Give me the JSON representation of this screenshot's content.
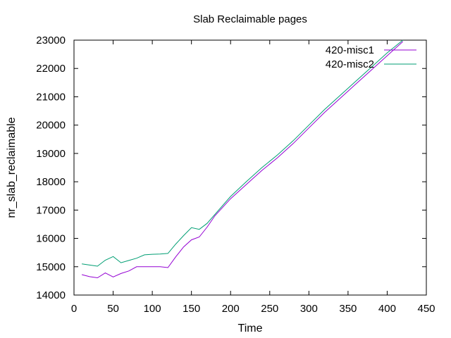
{
  "chart_data": {
    "type": "line",
    "title": "Slab Reclaimable pages",
    "xlabel": "Time",
    "ylabel": "nr_slab_reclaimable",
    "xlim": [
      0,
      450
    ],
    "ylim": [
      14000,
      23000
    ],
    "xticks": [
      0,
      50,
      100,
      150,
      200,
      250,
      300,
      350,
      400,
      450
    ],
    "yticks": [
      14000,
      15000,
      16000,
      17000,
      18000,
      19000,
      20000,
      21000,
      22000,
      23000
    ],
    "grid": false,
    "legend_position": "top-right",
    "series": [
      {
        "name": "420-misc1",
        "color": "#9400d3",
        "x": [
          10,
          20,
          30,
          40,
          50,
          60,
          70,
          80,
          90,
          100,
          110,
          120,
          130,
          140,
          150,
          160,
          170,
          180,
          200,
          220,
          240,
          260,
          280,
          300,
          320,
          340,
          360,
          380,
          400,
          420
        ],
        "y": [
          14720,
          14650,
          14610,
          14780,
          14640,
          14760,
          14850,
          15000,
          15000,
          15000,
          15000,
          14970,
          15350,
          15700,
          15950,
          16050,
          16400,
          16800,
          17400,
          17900,
          18400,
          18850,
          19350,
          19900,
          20450,
          20950,
          21450,
          21950,
          22450,
          22950
        ]
      },
      {
        "name": "420-misc2",
        "color": "#009e73",
        "x": [
          10,
          20,
          30,
          40,
          50,
          60,
          70,
          80,
          90,
          100,
          110,
          120,
          130,
          140,
          150,
          160,
          170,
          180,
          200,
          220,
          240,
          260,
          280,
          300,
          320,
          340,
          360,
          380,
          400,
          420
        ],
        "y": [
          15100,
          15060,
          15020,
          15230,
          15360,
          15140,
          15220,
          15300,
          15420,
          15440,
          15450,
          15470,
          15800,
          16100,
          16380,
          16320,
          16530,
          16850,
          17480,
          18000,
          18500,
          18950,
          19450,
          20000,
          20550,
          21050,
          21550,
          22050,
          22550,
          23000
        ]
      }
    ]
  }
}
